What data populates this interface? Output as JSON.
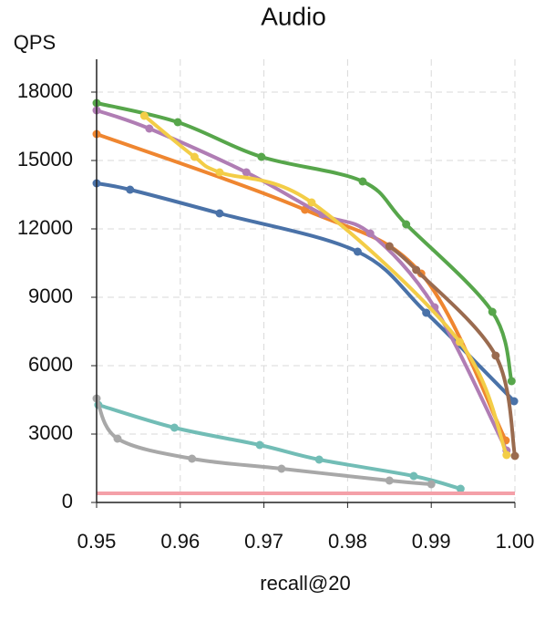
{
  "chart_data": {
    "type": "line",
    "title": "Audio",
    "xlabel": "recall@20",
    "ylabel": "QPS",
    "xlim": [
      0.95,
      1.0
    ],
    "ylim": [
      0,
      19440
    ],
    "xticks": [
      0.95,
      0.96,
      0.97,
      0.98,
      0.99,
      {
        "value": 1.0,
        "label": "1.00"
      }
    ],
    "yticks": [
      0,
      3000,
      6000,
      9000,
      12000,
      15000,
      18000
    ],
    "grid": true,
    "series": [
      {
        "color": "#4a72a8",
        "x": [
          0.95,
          0.954,
          0.9647,
          0.9812,
          0.9894,
          0.9999
        ],
        "values": [
          14000,
          13720,
          12680,
          11000,
          8320,
          4440
        ]
      },
      {
        "color": "#ef8630",
        "x": [
          0.95,
          0.9749,
          0.9888,
          0.9989
        ],
        "values": [
          16160,
          12840,
          10040,
          2720
        ]
      },
      {
        "color": "#57a64b",
        "x": [
          0.95,
          0.9597,
          0.9697,
          0.9818,
          0.987,
          0.9973,
          0.9996
        ],
        "values": [
          17520,
          16680,
          15160,
          14080,
          12200,
          8360,
          5320
        ]
      },
      {
        "color": "#b07db4",
        "x": [
          0.95,
          0.9563,
          0.9679,
          0.977,
          0.9827,
          0.9904,
          0.999
        ],
        "values": [
          17200,
          16400,
          14480,
          12640,
          11800,
          8560,
          2280
        ]
      },
      {
        "color": "#f3cd47",
        "x": [
          0.9557,
          0.9617,
          0.9647,
          0.9757,
          0.9934,
          0.999
        ],
        "values": [
          16960,
          15160,
          14480,
          13160,
          7040,
          2080
        ]
      },
      {
        "color": "#9a6b4f",
        "x": [
          0.985,
          0.9882,
          0.9977,
          1.0
        ],
        "values": [
          11240,
          10200,
          6440,
          2040
        ]
      },
      {
        "color": "#72bdb6",
        "x": [
          0.9502,
          0.9593,
          0.9695,
          0.9766,
          0.9879,
          0.9935
        ],
        "values": [
          4280,
          3280,
          2520,
          1880,
          1160,
          600
        ]
      },
      {
        "color": "#a8a8a8",
        "x": [
          0.95,
          0.9525,
          0.9614,
          0.9721,
          0.985,
          0.99
        ],
        "values": [
          4560,
          2800,
          1920,
          1480,
          960,
          800
        ]
      },
      {
        "color": "#f4a0a8",
        "x": [
          0.95,
          1.0
        ],
        "values": [
          400,
          400
        ],
        "marker": false
      }
    ]
  }
}
